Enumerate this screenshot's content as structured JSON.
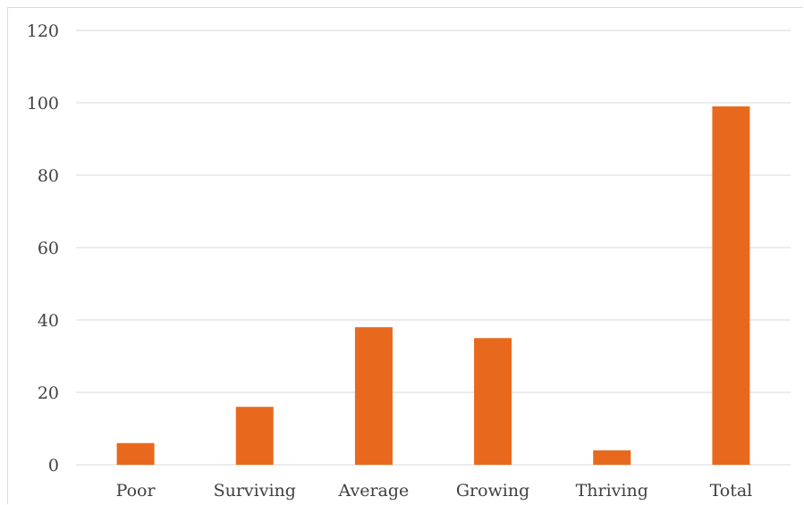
{
  "chart_data": {
    "type": "bar",
    "categories": [
      "Poor",
      "Surviving",
      "Average",
      "Growing",
      "Thriving",
      "Total"
    ],
    "values": [
      6,
      16,
      38,
      35,
      4,
      99
    ],
    "ylim": [
      0,
      120
    ],
    "yticks": [
      0,
      20,
      40,
      60,
      80,
      100,
      120
    ],
    "grid": true,
    "legend": "none",
    "title": "",
    "xlabel": "",
    "ylabel": "",
    "colors": {
      "bar": "#E8691E",
      "gridline": "#d9d9d9",
      "tick_text": "#404040",
      "frame": "#d9d9d9"
    }
  }
}
